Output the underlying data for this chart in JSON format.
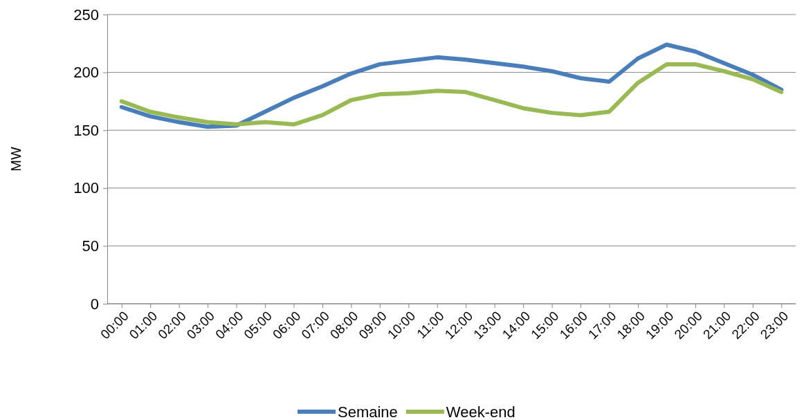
{
  "chart_data": {
    "type": "line",
    "ylabel": "MW",
    "categories": [
      "00:00",
      "01:00",
      "02:00",
      "03:00",
      "04:00",
      "05:00",
      "06:00",
      "07:00",
      "08:00",
      "09:00",
      "10:00",
      "11:00",
      "12:00",
      "13:00",
      "14:00",
      "15:00",
      "16:00",
      "17:00",
      "18:00",
      "19:00",
      "20:00",
      "21:00",
      "22:00",
      "23:00"
    ],
    "series": [
      {
        "name": "Semaine",
        "color": "#4a7ebb",
        "values": [
          170,
          162,
          157,
          153,
          154,
          166,
          178,
          188,
          199,
          207,
          210,
          213,
          211,
          208,
          205,
          201,
          195,
          192,
          212,
          224,
          218,
          208,
          198,
          185
        ]
      },
      {
        "name": "Week-end",
        "color": "#98b954",
        "values": [
          175,
          166,
          161,
          157,
          155,
          157,
          155,
          163,
          176,
          181,
          182,
          184,
          183,
          176,
          169,
          165,
          163,
          166,
          191,
          207,
          207,
          201,
          194,
          183
        ]
      }
    ],
    "ylim": [
      0,
      250
    ],
    "yticks": [
      0,
      50,
      100,
      150,
      200,
      250
    ],
    "grid": "y",
    "legend": "bottom",
    "marker": "none",
    "line_style": "solid"
  }
}
